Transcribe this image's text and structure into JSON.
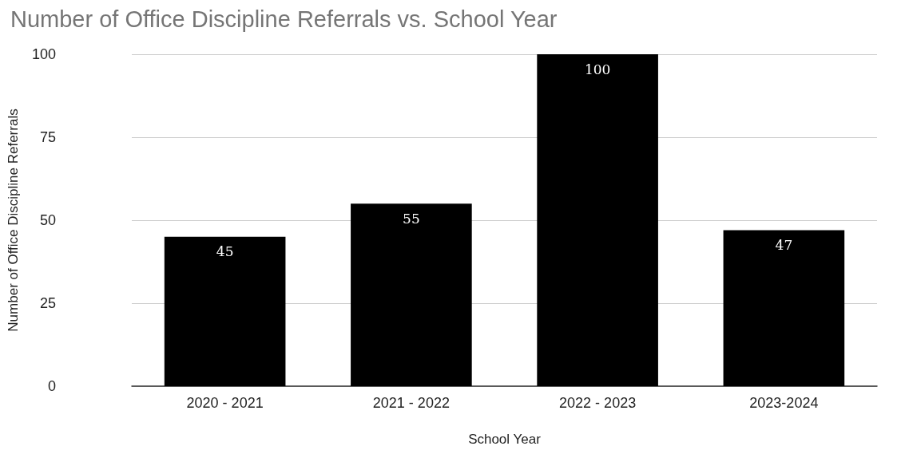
{
  "chart_data": {
    "type": "bar",
    "title": "Number of Office Discipline Referrals vs. School Year",
    "xlabel": "School Year",
    "ylabel": "Number of Office Discipline Referrals",
    "categories": [
      "2020 - 2021",
      "2021 - 2022",
      "2022 - 2023",
      "2023-2024"
    ],
    "values": [
      45,
      55,
      100,
      47
    ],
    "color": "#000000",
    "ylim": [
      0,
      100
    ],
    "yticks": [
      0,
      25,
      50,
      75,
      100
    ],
    "grid": "y",
    "data_labels": true
  }
}
